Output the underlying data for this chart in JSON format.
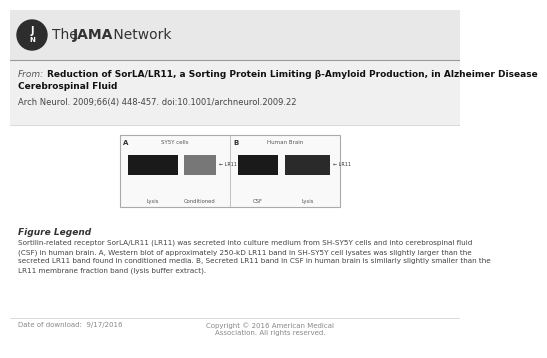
{
  "header_bg": "#e8e8e8",
  "from_label": "From:",
  "title_line1": "Reduction of SorLA/LR11, a Sorting Protein Limiting β-Amyloid Production, in Alzheimer Disease",
  "title_line2": "Cerebrospinal Fluid",
  "citation": "Arch Neurol. 2009;66(4) 448-457. doi:10.1001/archneurol.2009.22",
  "figure_legend_title": "Figure Legend",
  "legend_lines": [
    "Sortilin-related receptor SorLA/LR11 (LR11) was secreted into culture medium from SH-SY5Y cells and into cerebrospinal fluid",
    "(CSF) in human brain. A, Western blot of approximately 250-kD LR11 band in SH-SY5Y cell lysates was slightly larger than the",
    "secreted LR11 band found in conditioned media. B, Secreted LR11 band in CSF in human brain is similarly slightly smaller than the",
    "LR11 membrane fraction band (lysis buffer extract)."
  ],
  "date_text": "Date of download:  9/17/2016",
  "copyright_text": "Copyright © 2016 American Medical\nAssociation. All rights reserved.",
  "bg_color": "#ffffff",
  "header_color": "#e8e8e8",
  "gray_bg": "#f0f0f0",
  "text_dark": "#222222",
  "text_mid": "#444444",
  "text_light": "#888888",
  "border_color": "#bbbbbb"
}
